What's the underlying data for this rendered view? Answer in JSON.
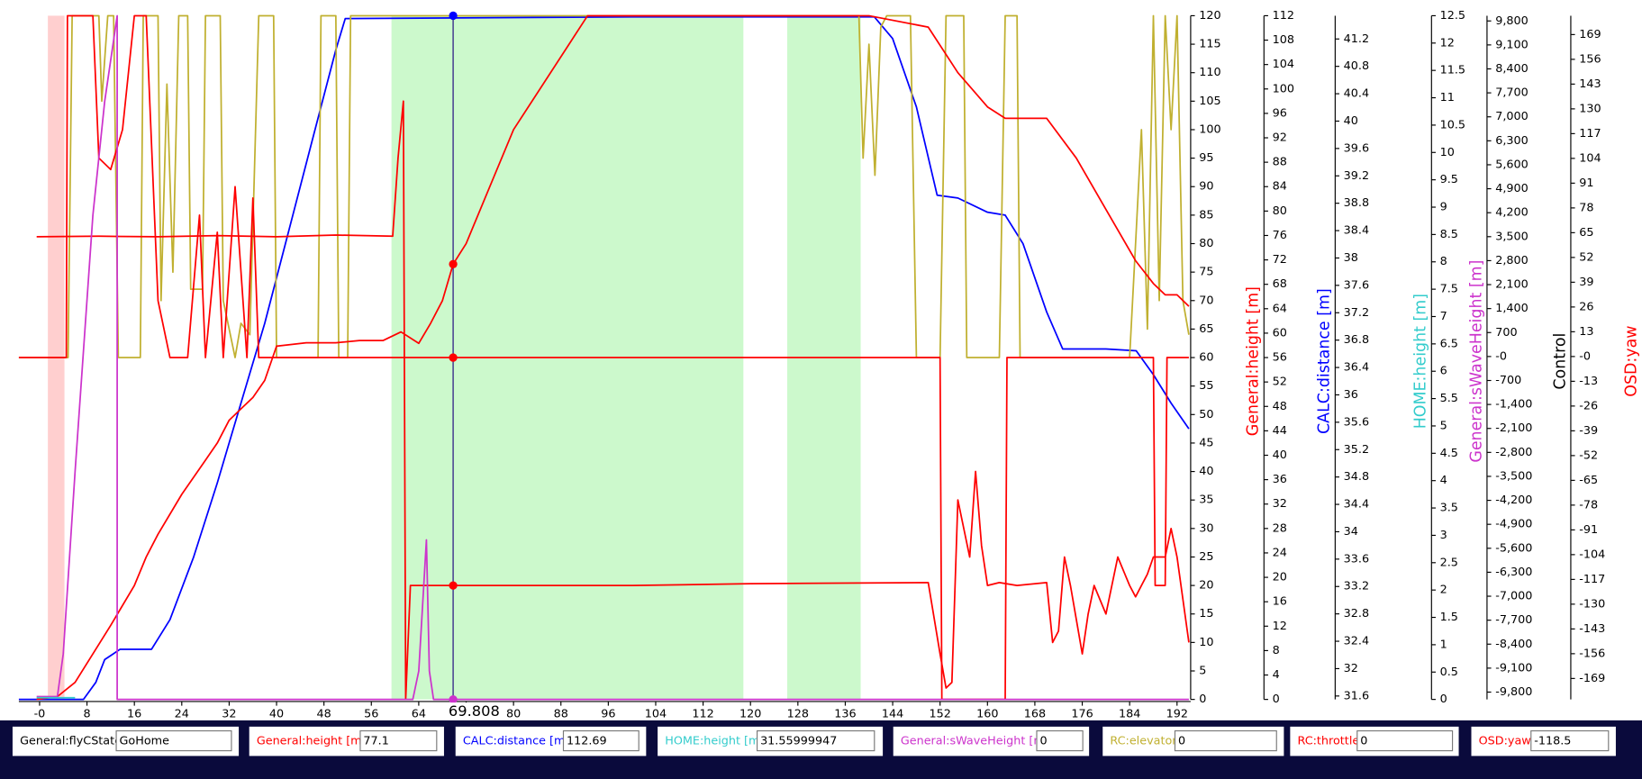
{
  "chart_data": {
    "type": "line",
    "xlim": [
      -3.5,
      194.3
    ],
    "xticks": [
      {
        "value": 0,
        "label": "-0"
      },
      8,
      16,
      24,
      32,
      40,
      48,
      56,
      64,
      72,
      80,
      88,
      96,
      104,
      112,
      120,
      128,
      136,
      144,
      152,
      160,
      168,
      176,
      184,
      192
    ],
    "ylim": [
      0,
      120
    ],
    "yticks": [
      0,
      5,
      10,
      15,
      20,
      25,
      30,
      35,
      40,
      45,
      50,
      55,
      60,
      65,
      70,
      75,
      80,
      85,
      90,
      95,
      100,
      105,
      110,
      115,
      120
    ],
    "bands": [
      {
        "from": 1.4,
        "to": 4.2,
        "color": "#ffcfcf"
      },
      {
        "from": 59.4,
        "to": 118.8,
        "color": "#ccf9cc"
      },
      {
        "from": 126.2,
        "to": 138.6,
        "color": "#ccf9cc"
      }
    ],
    "series": [
      {
        "color": "#0000ff",
        "x": [
          -3.5,
          7.4,
          9.5,
          11,
          13.6,
          18.9,
          22,
          26,
          30,
          34,
          38,
          42,
          46,
          50,
          51.6,
          100,
          140.9,
          144,
          148,
          151.5,
          155,
          160,
          163,
          166,
          170,
          172.7,
          180,
          185.1,
          188,
          191,
          194
        ],
        "values": [
          0,
          0,
          3,
          7,
          8.8,
          8.8,
          14,
          25,
          38,
          52,
          66,
          82,
          98,
          114,
          119.5,
          119.8,
          119.8,
          116,
          104,
          88.5,
          88,
          85.5,
          85,
          80,
          68,
          61.5,
          61.5,
          61.2,
          57,
          52,
          47.5
        ]
      },
      {
        "color": "#c0b030",
        "x": [
          -3.5,
          4.8,
          5.5,
          10,
          10.5,
          11.5,
          12.5,
          13.3,
          17,
          17.5,
          20,
          20.5,
          21.5,
          22.5,
          23.5,
          25,
          25.5,
          27.5,
          28,
          30.5,
          31,
          33,
          34,
          35.5,
          37,
          39.5,
          40,
          47,
          47.5,
          50,
          50.5,
          52,
          52.5,
          138.3,
          139,
          140,
          141,
          142,
          143,
          147,
          148,
          152,
          153,
          156,
          156.5,
          162,
          163,
          165,
          165.5,
          184,
          185,
          186,
          187,
          188,
          189,
          190,
          191,
          192,
          193,
          194
        ],
        "values": [
          60,
          60,
          120,
          120,
          105,
          120,
          120,
          60,
          60,
          120,
          120,
          70,
          108,
          75,
          120,
          120,
          72,
          72,
          120,
          120,
          70,
          60,
          66,
          64,
          120,
          120,
          60,
          60,
          120,
          120,
          60,
          60,
          120,
          120,
          95,
          115,
          92,
          118,
          120,
          120,
          60,
          60,
          120,
          120,
          60,
          60,
          120,
          120,
          60,
          60,
          80,
          100,
          65,
          120,
          70,
          120,
          100,
          120,
          70,
          64
        ]
      },
      {
        "color": "#ff0000",
        "x": [
          -3.5,
          4.5,
          4.7,
          9,
          10,
          12,
          14,
          16,
          18,
          20,
          22,
          25,
          27,
          28,
          30,
          31,
          33,
          35,
          36,
          37,
          39.7,
          152,
          152.3,
          163,
          163.3,
          188,
          188.3,
          190,
          190.3,
          194
        ],
        "values": [
          60,
          60,
          120,
          120,
          95,
          93,
          100,
          120,
          120,
          70,
          60,
          60,
          85,
          60,
          82,
          60,
          90,
          60,
          88,
          60,
          60,
          60,
          0,
          0,
          60,
          60,
          20,
          20,
          60,
          60
        ]
      },
      {
        "color": "#ff0000",
        "x": [
          -0.5,
          3,
          6,
          9,
          12,
          16,
          18,
          20,
          24,
          28,
          30,
          32,
          34,
          36,
          38,
          40,
          45,
          50,
          54,
          58,
          61,
          64,
          66,
          68,
          69.808,
          72,
          76,
          80,
          92.5,
          140,
          150,
          155,
          160,
          163,
          170,
          175,
          180,
          185,
          188,
          190,
          192,
          194
        ],
        "values": [
          0,
          0.5,
          3,
          8,
          13,
          20,
          25,
          29,
          36,
          42,
          45,
          49,
          51,
          53,
          56,
          62,
          62.6,
          62.6,
          63,
          63,
          64.5,
          62.5,
          66,
          70,
          76.4,
          80,
          90,
          100,
          120,
          120,
          118,
          110,
          104,
          102,
          102,
          95,
          86,
          77,
          73,
          71,
          71,
          69
        ]
      },
      {
        "color": "#ff0000",
        "x": [
          -0.5,
          10,
          20,
          30,
          40,
          50,
          59.6,
          60.5,
          61.4,
          61.8,
          62.6,
          70,
          100,
          120,
          150,
          152,
          153,
          154,
          155,
          157,
          158,
          159,
          160,
          162,
          165,
          170,
          171,
          172,
          173,
          174,
          176,
          177,
          178,
          180,
          182,
          184,
          185,
          187,
          188,
          190,
          191,
          192,
          194
        ],
        "values": [
          81.2,
          81.3,
          81.2,
          81.4,
          81.2,
          81.5,
          81.3,
          95,
          105,
          0,
          20,
          20,
          20,
          20.3,
          20.5,
          8,
          2,
          3,
          35,
          25,
          40,
          27,
          20,
          20.5,
          20,
          20.5,
          10,
          12,
          25,
          20,
          8,
          15,
          20,
          15,
          25,
          20,
          18,
          22,
          25,
          25,
          30,
          25,
          10
        ]
      },
      {
        "color": "#cc33cc",
        "x": [
          -0.5,
          3,
          4,
          6,
          9,
          11,
          13.1,
          13.1,
          63,
          64,
          65.3,
          65.8,
          66.5,
          194
        ],
        "values": [
          0.5,
          0.5,
          8,
          40,
          85,
          105,
          120,
          0,
          0,
          5,
          28,
          5,
          0,
          0
        ]
      },
      {
        "color": "#33cccc",
        "x": [
          -0.5,
          6
        ],
        "values": [
          0.3,
          0.3
        ]
      }
    ],
    "cursor": {
      "x": 69.808,
      "color": "#3b2e8a",
      "points": [
        {
          "value": 120,
          "color": "#0000ff"
        },
        {
          "value": 76.4,
          "color": "#ff0000"
        },
        {
          "value": 60,
          "color": "#ff0000"
        },
        {
          "value": 20,
          "color": "#ff0000"
        },
        {
          "value": 0,
          "color": "#cc33cc"
        }
      ]
    },
    "extra_axes": [
      {
        "title": "General:height [m]",
        "color": "#ff0000",
        "lim": [
          0,
          112
        ],
        "ticks": [
          0,
          4,
          8,
          12,
          16,
          20,
          24,
          28,
          32,
          36,
          40,
          44,
          48,
          52,
          56,
          60,
          64,
          68,
          72,
          76,
          80,
          84,
          88,
          92,
          96,
          100,
          104,
          108,
          112
        ]
      },
      {
        "title": "CALC:distance [m]",
        "color": "#0000ff",
        "lim": [
          31.55,
          41.54
        ],
        "ticks": [
          31.6,
          32,
          32.4,
          32.8,
          33.2,
          33.6,
          34,
          34.4,
          34.8,
          35.2,
          35.6,
          36,
          36.4,
          36.8,
          37.2,
          37.6,
          38,
          38.4,
          38.8,
          39.2,
          39.6,
          40,
          40.4,
          40.8,
          41.2
        ]
      },
      {
        "title": "HOME:height [m]",
        "color": "#33cccc",
        "lim": [
          0,
          12.5
        ],
        "ticks": [
          0,
          0.5,
          1,
          1.5,
          2,
          2.5,
          3,
          3.5,
          4,
          4.5,
          5,
          5.5,
          6,
          6.5,
          7,
          7.5,
          8,
          8.5,
          9,
          9.5,
          10,
          10.5,
          11,
          11.5,
          12,
          12.5
        ]
      },
      {
        "title": "General:sWaveHeight [m]",
        "color": "#cc33cc",
        "lim": [
          -10014,
          9953
        ],
        "ticks": [
          {
            "value": 9800,
            "label": "9,800"
          },
          {
            "value": 9100,
            "label": "9,100"
          },
          {
            "value": 8400,
            "label": "8,400"
          },
          {
            "value": 7700,
            "label": "7,700"
          },
          {
            "value": 7000,
            "label": "7,000"
          },
          {
            "value": 6300,
            "label": "6,300"
          },
          {
            "value": 5600,
            "label": "5,600"
          },
          {
            "value": 4900,
            "label": "4,900"
          },
          {
            "value": 4200,
            "label": "4,200"
          },
          {
            "value": 3500,
            "label": "3,500"
          },
          {
            "value": 2800,
            "label": "2,800"
          },
          {
            "value": 2100,
            "label": "2,100"
          },
          {
            "value": 1400,
            "label": "1,400"
          },
          700,
          {
            "value": 0,
            "label": "-0"
          },
          -700,
          {
            "value": -1400,
            "label": "-1,400"
          },
          {
            "value": -2100,
            "label": "-2,100"
          },
          {
            "value": -2800,
            "label": "-2,800"
          },
          {
            "value": -3500,
            "label": "-3,500"
          },
          {
            "value": -4200,
            "label": "-4,200"
          },
          {
            "value": -4900,
            "label": "-4,900"
          },
          {
            "value": -5600,
            "label": "-5,600"
          },
          {
            "value": -6300,
            "label": "-6,300"
          },
          {
            "value": -7000,
            "label": "-7,000"
          },
          {
            "value": -7700,
            "label": "-7,700"
          },
          {
            "value": -8400,
            "label": "-8,400"
          },
          {
            "value": -9100,
            "label": "-9,100"
          },
          {
            "value": -9800,
            "label": "-9,800"
          }
        ]
      },
      {
        "title": "OSD:yaw",
        "label2": "Control",
        "color": "#ff0000",
        "lim": [
          -180,
          178.9
        ],
        "ticks": [
          169,
          156,
          143,
          130,
          117,
          104,
          91,
          78,
          65,
          52,
          39,
          26,
          13,
          {
            "value": 0,
            "label": "-0"
          },
          -13,
          -26,
          -39,
          -52,
          -65,
          -78,
          -91,
          -104,
          -117,
          -130,
          -143,
          -156,
          -169
        ]
      }
    ]
  },
  "status_bar": [
    {
      "label": "General:flyCState",
      "value": "GoHome",
      "color": "#000000"
    },
    {
      "label": "General:height [m]",
      "value": "77.1",
      "color": "#ff0000"
    },
    {
      "label": "CALC:distance [m]",
      "value": "112.69",
      "color": "#0000ff"
    },
    {
      "label": "HOME:height [m]",
      "value": "31.55999947",
      "color": "#33cccc"
    },
    {
      "label": "General:sWaveHeight [m]",
      "value": "0",
      "color": "#cc33cc"
    },
    {
      "label": "RC:elevator",
      "value": "0",
      "color": "#c0b030"
    },
    {
      "label": "RC:throttle",
      "value": "0",
      "color": "#ff0000"
    },
    {
      "label": "OSD:yaw",
      "value": "-118.5",
      "color": "#ff0000"
    }
  ]
}
